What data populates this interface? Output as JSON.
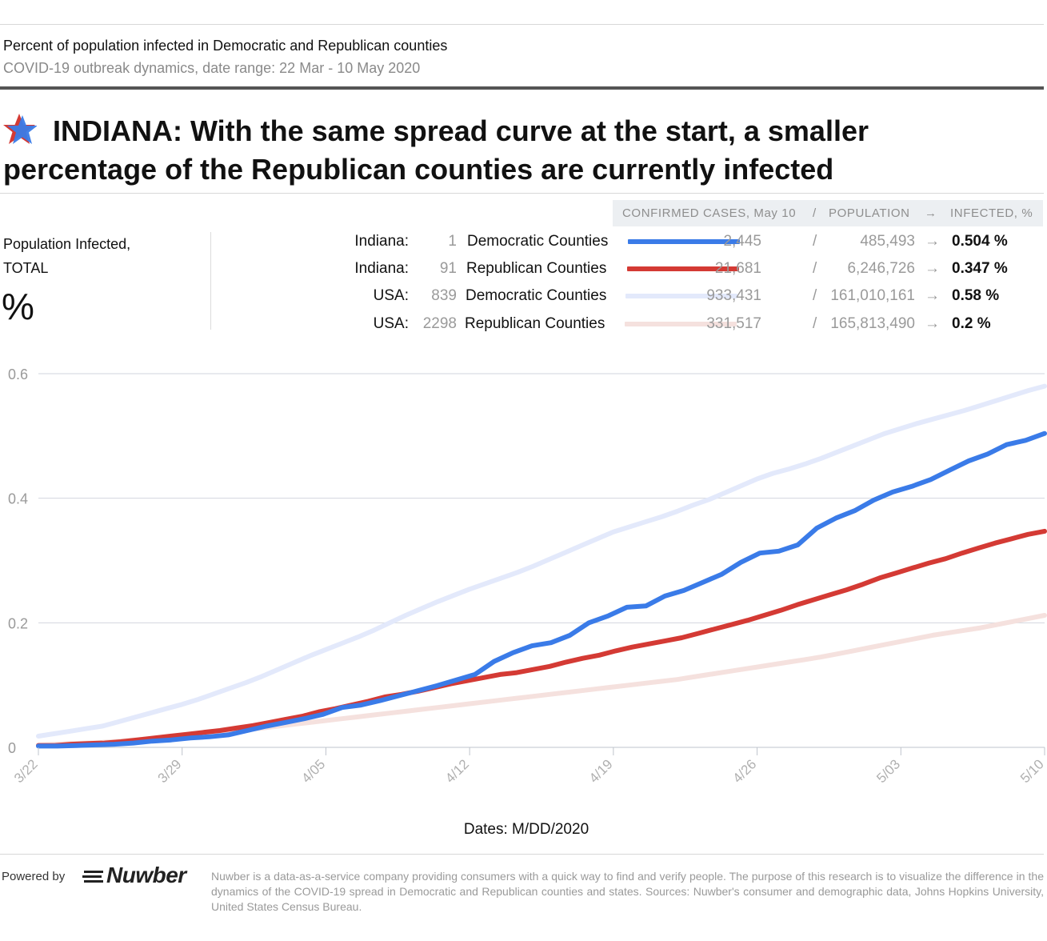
{
  "header": {
    "subtitle_1": "Percent of population infected in Democratic and Republican counties",
    "subtitle_2": "COVID-19 outbreak dynamics, date range: 22 Mar - 10 May 2020",
    "headline": "INDIANA: With the same spread curve at the start, a smaller percentage of the Republican counties are currently infected"
  },
  "legend_header": {
    "cases": "CONFIRMED CASES, May 10",
    "slash": "/",
    "population": "POPULATION",
    "arrow": "→",
    "infected": "INFECTED, %"
  },
  "side_panel": {
    "label_line1": "Population Infected,",
    "label_line2": "TOTAL",
    "unit": "%"
  },
  "legend_rows": [
    {
      "region": "Indiana:",
      "count": "1",
      "group": "Democratic Counties",
      "color": "#3a7be8",
      "cases": "2,445",
      "slash": "/",
      "population": "485,493",
      "arrow": "→",
      "infected": "0.504 %"
    },
    {
      "region": "Indiana:",
      "count": "91",
      "group": "Republican Counties",
      "color": "#d43a34",
      "cases": "21,681",
      "slash": "/",
      "population": "6,246,726",
      "arrow": "→",
      "infected": "0.347 %"
    },
    {
      "region": "USA:",
      "count": "839",
      "group": "Democratic Counties",
      "color": "#e3e9fb",
      "cases": "933,431",
      "slash": "/",
      "population": "161,010,161",
      "arrow": "→",
      "infected": "0.58 %"
    },
    {
      "region": "USA:",
      "count": "2298",
      "group": "Republican Counties",
      "color": "#f5e1de",
      "cases": "331,517",
      "slash": "/",
      "population": "165,813,490",
      "arrow": "→",
      "infected": "0.2 %"
    }
  ],
  "chart_data": {
    "type": "line",
    "title": "Percent of population infected in Democratic and Republican counties",
    "xlabel": "Dates: M/DD/2020",
    "ylabel": "Population Infected, TOTAL %",
    "ylim": [
      0,
      0.6
    ],
    "y_ticks": [
      0,
      0.2,
      0.4,
      0.6
    ],
    "y_tick_labels": [
      "0",
      "0.2",
      "0.4",
      "0.6"
    ],
    "x_tick_labels": [
      "3/22",
      "3/29",
      "4/05",
      "4/12",
      "4/19",
      "4/26",
      "5/03",
      "5/10"
    ],
    "x_tick_days": [
      0,
      7,
      14,
      21,
      28,
      35,
      42,
      49
    ],
    "grid": true,
    "series": [
      {
        "name": "USA: Democratic Counties",
        "color": "#e3e9fb",
        "values": [
          0.018,
          0.022,
          0.026,
          0.03,
          0.034,
          0.041,
          0.048,
          0.055,
          0.062,
          0.069,
          0.077,
          0.086,
          0.095,
          0.104,
          0.114,
          0.125,
          0.136,
          0.147,
          0.157,
          0.167,
          0.177,
          0.188,
          0.2,
          0.212,
          0.223,
          0.234,
          0.244,
          0.254,
          0.263,
          0.272,
          0.281,
          0.291,
          0.302,
          0.313,
          0.324,
          0.335,
          0.346,
          0.354,
          0.362,
          0.37,
          0.379,
          0.389,
          0.398,
          0.409,
          0.42,
          0.431,
          0.44,
          0.447,
          0.455,
          0.464,
          0.474,
          0.484,
          0.494,
          0.504,
          0.512,
          0.52,
          0.527,
          0.534,
          0.541,
          0.549,
          0.557,
          0.565,
          0.573,
          0.58
        ]
      },
      {
        "name": "USA: Republican Counties",
        "color": "#f5e1de",
        "values": [
          0.004,
          0.005,
          0.006,
          0.007,
          0.008,
          0.01,
          0.012,
          0.014,
          0.016,
          0.018,
          0.02,
          0.022,
          0.025,
          0.028,
          0.031,
          0.034,
          0.037,
          0.04,
          0.043,
          0.046,
          0.049,
          0.052,
          0.055,
          0.058,
          0.061,
          0.064,
          0.067,
          0.07,
          0.073,
          0.076,
          0.079,
          0.082,
          0.085,
          0.088,
          0.091,
          0.094,
          0.097,
          0.1,
          0.103,
          0.106,
          0.109,
          0.113,
          0.117,
          0.121,
          0.125,
          0.129,
          0.133,
          0.137,
          0.141,
          0.145,
          0.15,
          0.155,
          0.16,
          0.165,
          0.17,
          0.175,
          0.18,
          0.184,
          0.188,
          0.192,
          0.197,
          0.202,
          0.207,
          0.212
        ]
      },
      {
        "name": "Indiana: Republican Counties",
        "color": "#d43a34",
        "values": [
          0.003,
          0.003,
          0.005,
          0.006,
          0.007,
          0.009,
          0.012,
          0.015,
          0.018,
          0.021,
          0.024,
          0.027,
          0.031,
          0.035,
          0.04,
          0.045,
          0.05,
          0.057,
          0.062,
          0.068,
          0.074,
          0.081,
          0.085,
          0.09,
          0.096,
          0.102,
          0.107,
          0.112,
          0.117,
          0.12,
          0.125,
          0.13,
          0.137,
          0.143,
          0.148,
          0.155,
          0.161,
          0.166,
          0.171,
          0.176,
          0.183,
          0.19,
          0.197,
          0.204,
          0.212,
          0.22,
          0.229,
          0.237,
          0.245,
          0.253,
          0.262,
          0.272,
          0.28,
          0.288,
          0.296,
          0.303,
          0.312,
          0.32,
          0.328,
          0.335,
          0.342,
          0.347
        ]
      },
      {
        "name": "Indiana: Democratic Counties",
        "color": "#3a7be8",
        "values": [
          0.002,
          0.002,
          0.003,
          0.004,
          0.005,
          0.007,
          0.01,
          0.012,
          0.015,
          0.017,
          0.02,
          0.027,
          0.034,
          0.04,
          0.046,
          0.053,
          0.064,
          0.068,
          0.075,
          0.083,
          0.091,
          0.099,
          0.108,
          0.117,
          0.138,
          0.152,
          0.163,
          0.168,
          0.18,
          0.2,
          0.211,
          0.225,
          0.227,
          0.243,
          0.252,
          0.265,
          0.278,
          0.297,
          0.312,
          0.315,
          0.325,
          0.352,
          0.368,
          0.38,
          0.397,
          0.41,
          0.419,
          0.43,
          0.445,
          0.46,
          0.471,
          0.486,
          0.493,
          0.504
        ]
      }
    ]
  },
  "footer": {
    "powered_by": "Powered by",
    "logo_text": "Nuwber",
    "footnote": "Nuwber is a data-as-a-service company providing consumers with a quick way to find and verify people. The purpose of this research is to visualize the difference in the dynamics of the COVID-19 spread in Democratic and Republican counties and states. Sources: Nuwber's consumer and demographic data, Johns Hopkins University, United States Census Bureau."
  }
}
